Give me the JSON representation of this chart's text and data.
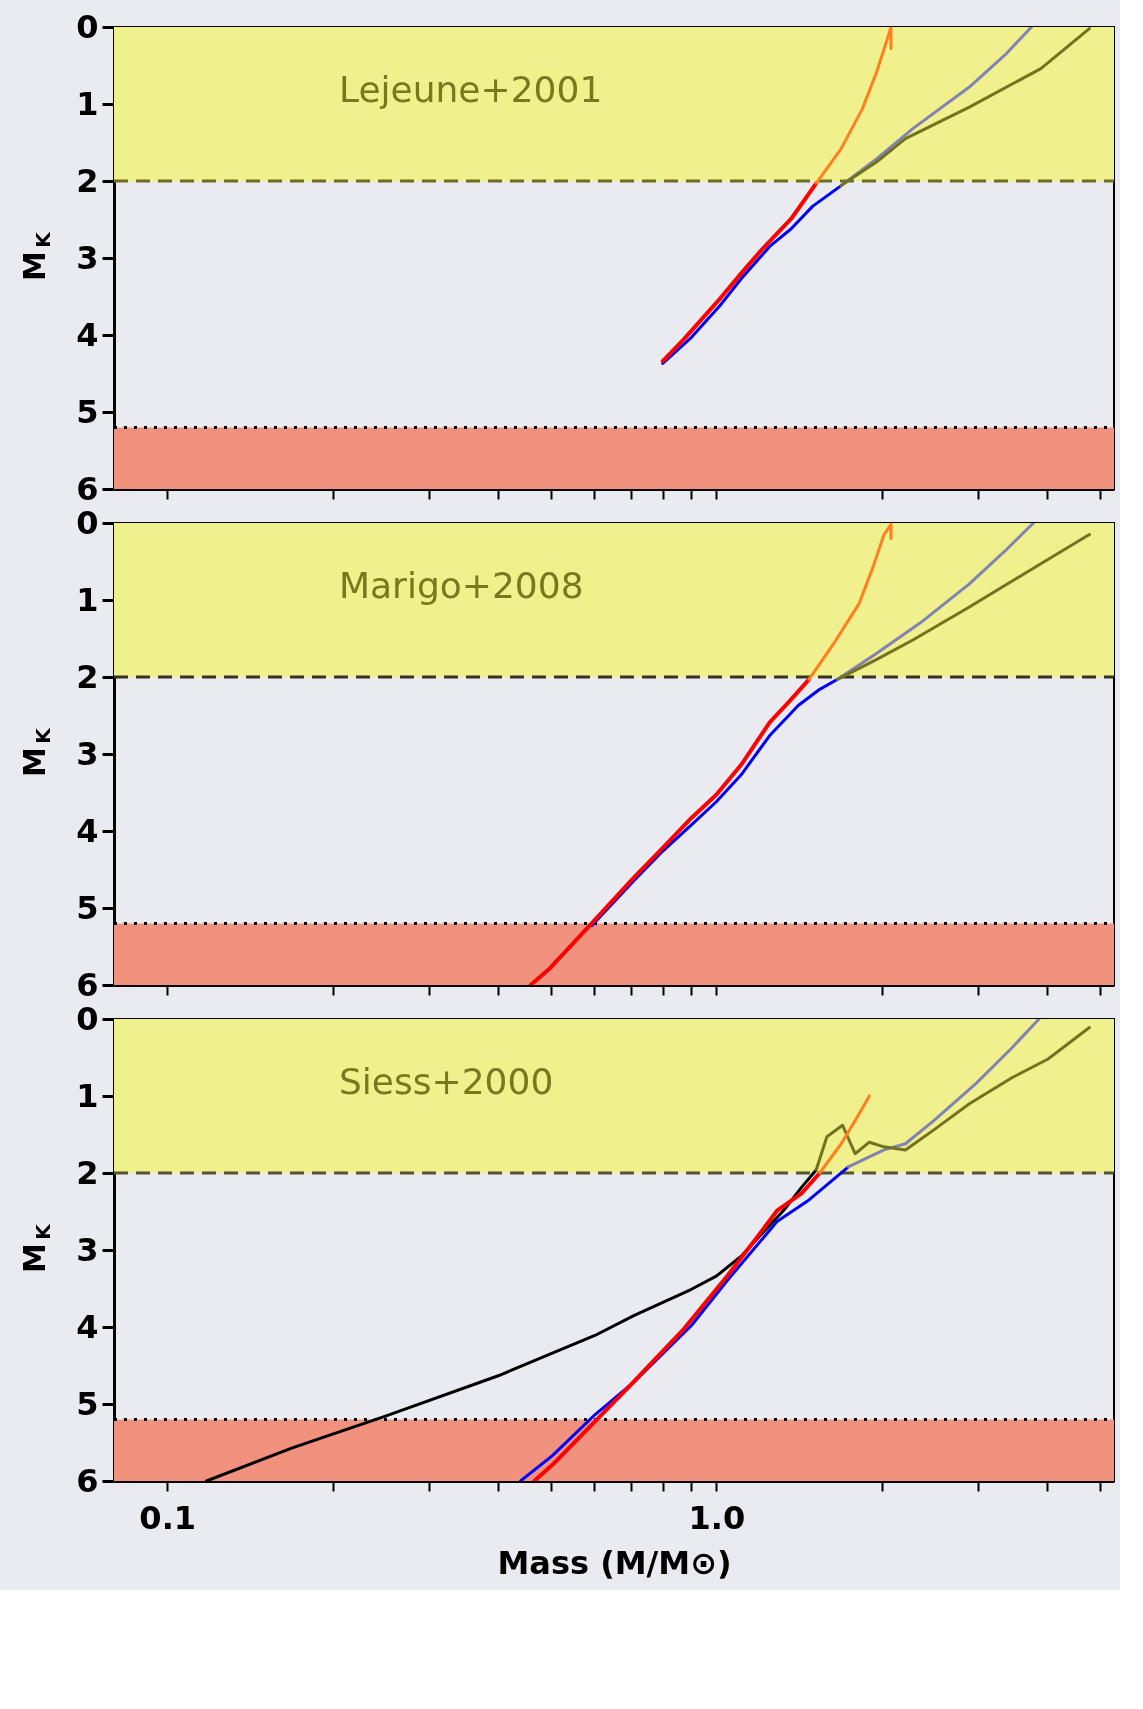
{
  "chart_data": [
    {
      "type": "line",
      "annotations": [
        "Lejeune+2001"
      ],
      "ylabel": "M$_{K}$",
      "log": "x",
      "tick_labels": "y",
      "marker": "none",
      "line_style": "solid",
      "grid": false,
      "xlim": [
        0.08,
        5.3
      ],
      "ylim": [
        6,
        0
      ],
      "xticks": [
        {
          "value": 0.1,
          "label": null
        },
        {
          "value": 0.2,
          "label": null
        },
        {
          "value": 0.3,
          "label": null
        },
        {
          "value": 0.4,
          "label": null
        },
        {
          "value": 0.5,
          "label": null
        },
        {
          "value": 0.6,
          "label": null
        },
        {
          "value": 0.7,
          "label": null
        },
        {
          "value": 0.8,
          "label": null
        },
        {
          "value": 0.9,
          "label": null
        },
        {
          "value": 1,
          "label": null
        },
        {
          "value": 2,
          "label": null
        },
        {
          "value": 3,
          "label": null
        },
        {
          "value": 4,
          "label": null
        },
        {
          "value": 5,
          "label": null
        }
      ],
      "yticks": [
        0,
        1,
        2,
        3,
        4,
        5,
        6
      ],
      "bands": [
        {
          "axis": "y",
          "from": 0,
          "to": 2,
          "color": "#f0f08c"
        },
        {
          "axis": "y",
          "from": 5.2,
          "to": 6,
          "color": "#f0927e"
        }
      ],
      "ref_lines": [
        {
          "axis": "y",
          "value": 2,
          "color": "#6e6e1e",
          "line_style": "dashed"
        },
        {
          "axis": "y",
          "value": 5.2,
          "color": "#000000",
          "line_style": "dotted"
        }
      ],
      "series": [
        {
          "color": "#0000ff",
          "x": [
            0.799,
            0.901,
            1.015,
            1.11,
            1.251,
            1.369,
            1.497,
            1.688
          ],
          "values": [
            4.37,
            4.03,
            3.62,
            3.27,
            2.85,
            2.62,
            2.33,
            2.06
          ]
        },
        {
          "color": "#8282b4",
          "x": [
            1.688,
            1.96,
            2.28,
            2.89,
            3.36,
            3.75
          ],
          "values": [
            2.06,
            1.71,
            1.32,
            0.78,
            0.36,
            0
          ]
        },
        {
          "color": "#727220",
          "x": [
            1.688,
            1.96,
            2.21,
            2.89,
            3.9,
            4.78
          ],
          "values": [
            2.06,
            1.75,
            1.45,
            1.04,
            0.54,
            0.02
          ]
        },
        {
          "color": "#ff0000",
          "x": [
            0.799,
            0.874,
            1.015,
            1.11,
            1.214,
            1.369,
            1.52
          ],
          "values": [
            4.34,
            4.05,
            3.53,
            3.2,
            2.88,
            2.49,
            2.03
          ]
        },
        {
          "color": "#ff8020",
          "x": [
            1.52,
            1.688,
            1.846,
            1.96,
            2.05,
            2.08,
            2.08
          ],
          "values": [
            2.03,
            1.58,
            1.06,
            0.58,
            0.15,
            0,
            0.28
          ]
        }
      ]
    },
    {
      "type": "line",
      "annotations": [
        "Marigo+2008"
      ],
      "ylabel": "M$_{K}$",
      "log": "x",
      "tick_labels": "y",
      "marker": "none",
      "line_style": "solid",
      "grid": false,
      "xlim": [
        0.08,
        5.3
      ],
      "ylim": [
        6,
        0
      ],
      "xticks": [
        {
          "value": 0.1,
          "label": null
        },
        {
          "value": 0.2,
          "label": null
        },
        {
          "value": 0.3,
          "label": null
        },
        {
          "value": 0.4,
          "label": null
        },
        {
          "value": 0.5,
          "label": null
        },
        {
          "value": 0.6,
          "label": null
        },
        {
          "value": 0.7,
          "label": null
        },
        {
          "value": 0.8,
          "label": null
        },
        {
          "value": 0.9,
          "label": null
        },
        {
          "value": 1,
          "label": null
        },
        {
          "value": 2,
          "label": null
        },
        {
          "value": 3,
          "label": null
        },
        {
          "value": 4,
          "label": null
        },
        {
          "value": 5,
          "label": null
        }
      ],
      "yticks": [
        0,
        1,
        2,
        3,
        4,
        5,
        6
      ],
      "bands": [
        {
          "axis": "y",
          "from": 0,
          "to": 2,
          "color": "#f0f08c"
        },
        {
          "axis": "y",
          "from": 5.2,
          "to": 6,
          "color": "#f0927e"
        }
      ],
      "ref_lines": [
        {
          "axis": "y",
          "value": 2,
          "color": "#333320",
          "line_style": "dashed"
        },
        {
          "axis": "y",
          "value": 5.2,
          "color": "#000000",
          "line_style": "dotted"
        }
      ],
      "series": [
        {
          "color": "#0000ff",
          "x": [
            0.593,
            0.709,
            0.799,
            0.901,
            1.0,
            1.11,
            1.251,
            1.41,
            1.543,
            1.663
          ],
          "values": [
            5.23,
            4.64,
            4.26,
            3.92,
            3.62,
            3.27,
            2.76,
            2.37,
            2.16,
            2.03
          ]
        },
        {
          "color": "#8282b4",
          "x": [
            1.663,
            1.96,
            2.35,
            2.89,
            3.36,
            3.78
          ],
          "values": [
            2.03,
            1.69,
            1.3,
            0.79,
            0.36,
            0
          ]
        },
        {
          "color": "#727220",
          "x": [
            1.663,
            1.96,
            2.28,
            2.89,
            3.9,
            4.78
          ],
          "values": [
            2.03,
            1.77,
            1.52,
            1.09,
            0.53,
            0.15
          ]
        },
        {
          "color": "#ff0000",
          "x": [
            0.459,
            0.495,
            0.593,
            0.709,
            0.799,
            0.901,
            1.0,
            1.11,
            1.251,
            1.369,
            1.475
          ],
          "values": [
            6.0,
            5.8,
            5.2,
            4.6,
            4.22,
            3.83,
            3.53,
            3.14,
            2.59,
            2.29,
            2.03
          ]
        },
        {
          "color": "#ff8020",
          "x": [
            1.475,
            1.638,
            1.819,
            1.93,
            2.02,
            2.08,
            2.08
          ],
          "values": [
            2.03,
            1.56,
            1.05,
            0.57,
            0.15,
            0.02,
            0.2
          ]
        }
      ]
    },
    {
      "type": "line",
      "annotations": [
        "Siess+2000"
      ],
      "ylabel": "M$_{K}$",
      "xlabel": "Mass (M/M⊙)",
      "log": "x",
      "marker": "none",
      "line_style": "solid",
      "grid": false,
      "xlim": [
        0.08,
        5.3
      ],
      "ylim": [
        6,
        0
      ],
      "xticks": [
        {
          "value": 0.1,
          "label": "0.1"
        },
        {
          "value": 0.2,
          "label": null
        },
        {
          "value": 0.3,
          "label": null
        },
        {
          "value": 0.4,
          "label": null
        },
        {
          "value": 0.5,
          "label": null
        },
        {
          "value": 0.6,
          "label": null
        },
        {
          "value": 0.7,
          "label": null
        },
        {
          "value": 0.8,
          "label": null
        },
        {
          "value": 0.9,
          "label": null
        },
        {
          "value": 1,
          "label": "1.0"
        },
        {
          "value": 2,
          "label": null
        },
        {
          "value": 3,
          "label": null
        },
        {
          "value": 4,
          "label": null
        },
        {
          "value": 5,
          "label": null
        }
      ],
      "yticks": [
        0,
        1,
        2,
        3,
        4,
        5,
        6
      ],
      "bands": [
        {
          "axis": "y",
          "from": 0,
          "to": 2,
          "color": "#f0f08c"
        },
        {
          "axis": "y",
          "from": 5.2,
          "to": 6,
          "color": "#f0927e"
        }
      ],
      "ref_lines": [
        {
          "axis": "y",
          "value": 2,
          "color": "#555530",
          "line_style": "dashed"
        },
        {
          "axis": "y",
          "value": 5.2,
          "color": "#000000",
          "line_style": "dotted"
        }
      ],
      "series": [
        {
          "color": "#000000",
          "x": [
            0.1179,
            0.169,
            0.249,
            0.402,
            0.601,
            0.709,
            0.901,
            1.0,
            1.11,
            1.214,
            1.328,
            1.432,
            1.52
          ],
          "values": [
            6.0,
            5.57,
            5.16,
            4.63,
            4.11,
            3.85,
            3.51,
            3.34,
            3.08,
            2.78,
            2.48,
            2.18,
            1.96
          ]
        },
        {
          "color": "#0000ff",
          "x": [
            0.44,
            0.503,
            0.601,
            0.709,
            0.901,
            1.046,
            1.29,
            1.475,
            1.74
          ],
          "values": [
            6.0,
            5.67,
            5.14,
            4.71,
            3.98,
            3.4,
            2.63,
            2.35,
            1.92
          ]
        },
        {
          "color": "#8282b4",
          "x": [
            1.74,
            1.874,
            2.02,
            2.21,
            2.49,
            2.98,
            3.46,
            3.87
          ],
          "values": [
            1.92,
            1.81,
            1.7,
            1.62,
            1.32,
            0.83,
            0.37,
            0
          ]
        },
        {
          "color": "#727220",
          "x": [
            1.52,
            1.59,
            1.698,
            1.79,
            1.9,
            2.02,
            2.21,
            2.49,
            2.89,
            3.46,
            4.02,
            4.78
          ],
          "values": [
            1.96,
            1.53,
            1.38,
            1.75,
            1.6,
            1.66,
            1.7,
            1.44,
            1.1,
            0.76,
            0.52,
            0.11
          ]
        },
        {
          "color": "#ff0000",
          "x": [
            0.466,
            0.503,
            0.593,
            0.699,
            0.874,
            1.046,
            1.179,
            1.29,
            1.432,
            1.543
          ],
          "values": [
            6.0,
            5.79,
            5.27,
            4.75,
            4.02,
            3.34,
            2.86,
            2.49,
            2.26,
            2.0
          ]
        },
        {
          "color": "#ff8020",
          "x": [
            1.543,
            1.688,
            1.79,
            1.9
          ],
          "values": [
            2.0,
            1.62,
            1.32,
            1.0
          ]
        }
      ]
    }
  ]
}
